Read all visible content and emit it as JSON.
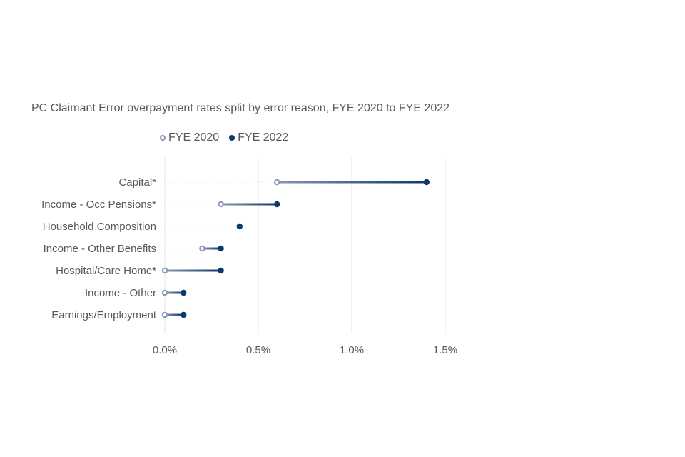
{
  "chart_data": {
    "type": "dumbbell",
    "title": "PC Claimant Error overpayment rates split by error reason, FYE 2020 to FYE 2022",
    "legend": {
      "placement": "top",
      "labels": [
        "FYE 2020",
        "FYE 2022"
      ]
    },
    "categories": [
      "Capital*",
      "Income - Occ Pensions*",
      "Household Composition",
      "Income - Other Benefits",
      "Hospital/Care Home*",
      "Income - Other",
      "Earnings/Employment"
    ],
    "series": [
      {
        "name": "FYE 2020",
        "values": [
          0.6,
          0.3,
          null,
          0.2,
          0.0,
          0.0,
          0.0
        ]
      },
      {
        "name": "FYE 2022",
        "values": [
          1.4,
          0.6,
          0.4,
          0.3,
          0.3,
          0.1,
          0.1
        ]
      }
    ],
    "xlim": [
      0,
      1.5
    ],
    "xticks": [
      0,
      0.5,
      1.0,
      1.5
    ],
    "xtick_labels": [
      "0.0%",
      "0.5%",
      "1.0%",
      "1.5%"
    ],
    "colors": {
      "fye2020": "#8896b4",
      "fye2022": "#0d3a6b",
      "grid": "#e6e6e6"
    }
  }
}
